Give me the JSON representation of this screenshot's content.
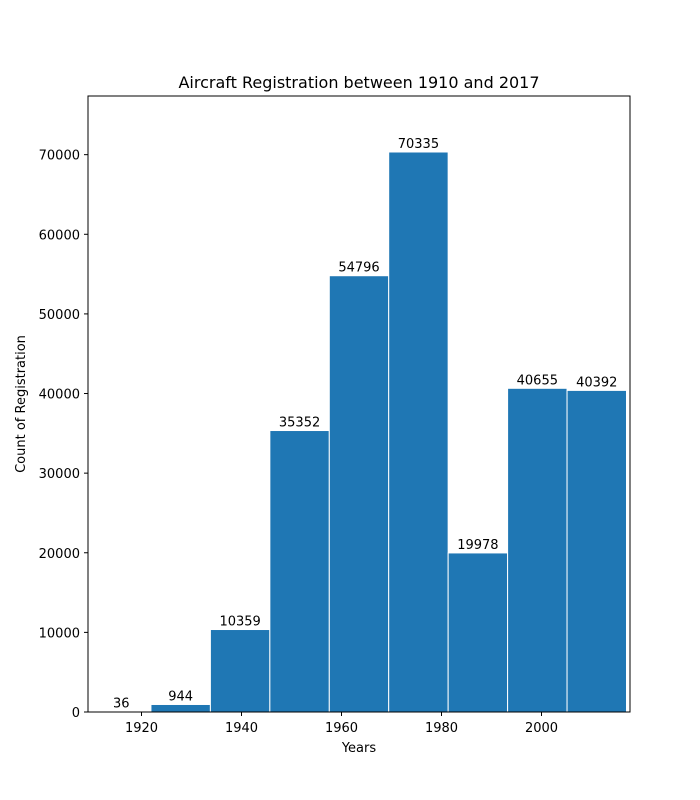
{
  "chart_data": {
    "type": "bar",
    "title": "Aircraft Registration between 1910 and 2017",
    "xlabel": "Years",
    "ylabel": "Count of Registration",
    "bin_edges": [
      1910,
      1921.89,
      1933.78,
      1945.67,
      1957.56,
      1969.44,
      1981.33,
      1993.22,
      2005.11,
      2017
    ],
    "values": [
      36,
      944,
      10359,
      35352,
      54796,
      70335,
      19978,
      40655,
      40392
    ],
    "data_labels": [
      "36",
      "944",
      "10359",
      "35352",
      "54796",
      "70335",
      "19978",
      "40655",
      "40392"
    ],
    "xlim": [
      1909.3,
      2017.7
    ],
    "ylim": [
      0,
      77368
    ],
    "x_ticks": [
      1920,
      1940,
      1960,
      1980,
      2000
    ],
    "x_tick_labels": [
      "1920",
      "1940",
      "1960",
      "1980",
      "2000"
    ],
    "y_ticks": [
      0,
      10000,
      20000,
      30000,
      40000,
      50000,
      60000,
      70000
    ],
    "y_tick_labels": [
      "0",
      "10000",
      "20000",
      "30000",
      "40000",
      "50000",
      "60000",
      "70000"
    ],
    "grid": false,
    "legend": "none",
    "bar_color": "#1f77b4",
    "bar_edge_color": "#ffffff"
  }
}
